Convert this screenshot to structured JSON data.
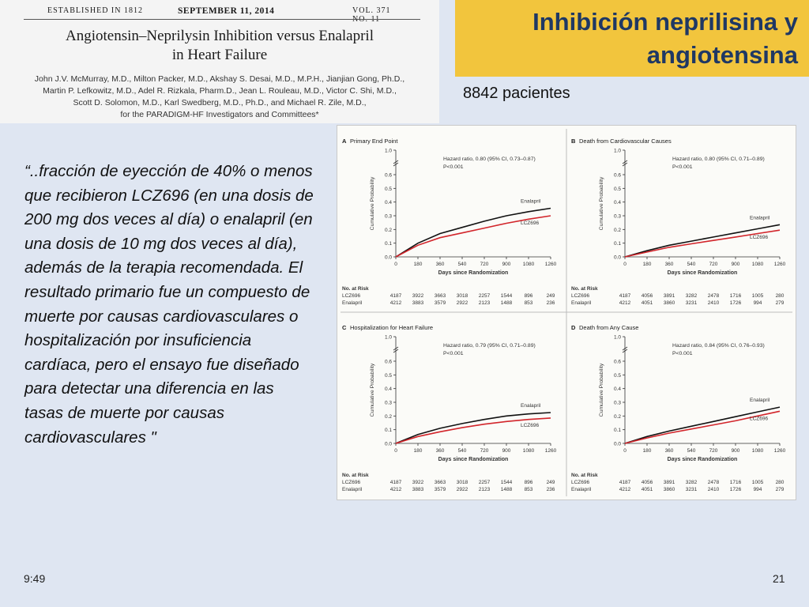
{
  "article": {
    "established": "ESTABLISHED IN 1812",
    "date": "SEPTEMBER 11, 2014",
    "volume": "VOL. 371 NO. 11",
    "title_line1": "Angiotensin–Neprilysin Inhibition versus Enalapril",
    "title_line2": "in Heart Failure",
    "authors_line1": "John J.V. McMurray, M.D., Milton Packer, M.D., Akshay S. Desai, M.D., M.P.H., Jianjian Gong, Ph.D.,",
    "authors_line2": "Martin P. Lefkowitz, M.D., Adel R. Rizkala, Pharm.D., Jean L. Rouleau, M.D., Victor C. Shi, M.D.,",
    "authors_line3": "Scott D. Solomon, M.D., Karl Swedberg, M.D., Ph.D., and Michael R. Zile, M.D.,",
    "authors_line4": "for the PARADIGM-HF Investigators and Committees*"
  },
  "slide": {
    "title_line1": "Inhibición neprilisina y",
    "title_line2": "angiotensina",
    "patients": "8842 pacientes",
    "quote": "“..fracción de eyección de 40% o menos que recibieron LCZ696 (en una dosis de 200 mg dos veces al día) o enalapril (en una dosis de 10 mg dos veces al día), además de la terapia recomendada. El resultado primario fue un compuesto de muerte por causas cardiovasculares o hospitalización por insuficiencia cardíaca, pero el ensayo fue diseñado para detectar una diferencia en las tasas de muerte por causas cardiovasculares \"",
    "time": "9:49",
    "page": "21"
  },
  "chart_data": [
    {
      "panel": "A",
      "type": "line",
      "title": "Primary End Point",
      "annotation": "Hazard ratio, 0.80 (95% CI, 0.73–0.87)",
      "p_value": "P<0.001",
      "xlabel": "Days since Randomization",
      "ylabel": "Cumulative Probability",
      "x": [
        0,
        180,
        360,
        540,
        720,
        900,
        1080,
        1260
      ],
      "xlim": [
        0,
        1260
      ],
      "yticks": [
        "0.0",
        "0.1",
        "0.2",
        "0.3",
        "0.4",
        "0.5",
        "0.6",
        "1.0"
      ],
      "series": [
        {
          "name": "Enalapril",
          "color": "#111111",
          "values": [
            0,
            0.1,
            0.17,
            0.215,
            0.26,
            0.3,
            0.33,
            0.355
          ]
        },
        {
          "name": "LCZ696",
          "color": "#d2252b",
          "values": [
            0,
            0.085,
            0.14,
            0.175,
            0.21,
            0.245,
            0.275,
            0.3
          ]
        }
      ],
      "at_risk": {
        "header": "No. at Risk",
        "rows": [
          {
            "name": "LCZ696",
            "values": [
              "4187",
              "3922",
              "3663",
              "3018",
              "2257",
              "1544",
              "896",
              "249"
            ]
          },
          {
            "name": "Enalapril",
            "values": [
              "4212",
              "3883",
              "3579",
              "2922",
              "2123",
              "1488",
              "853",
              "236"
            ]
          }
        ]
      }
    },
    {
      "panel": "B",
      "type": "line",
      "title": "Death from Cardiovascular Causes",
      "annotation": "Hazard ratio, 0.80 (95% CI, 0.71–0.89)",
      "p_value": "P<0.001",
      "xlabel": "Days since Randomization",
      "ylabel": "Cumulative Probability",
      "x": [
        0,
        180,
        360,
        540,
        720,
        900,
        1080,
        1260
      ],
      "xlim": [
        0,
        1260
      ],
      "yticks": [
        "0.0",
        "0.1",
        "0.2",
        "0.3",
        "0.4",
        "0.5",
        "0.6",
        "1.0"
      ],
      "series": [
        {
          "name": "Enalapril",
          "color": "#111111",
          "values": [
            0,
            0.045,
            0.085,
            0.115,
            0.145,
            0.175,
            0.205,
            0.235
          ]
        },
        {
          "name": "LCZ696",
          "color": "#d2252b",
          "values": [
            0,
            0.035,
            0.07,
            0.095,
            0.12,
            0.145,
            0.17,
            0.195
          ]
        }
      ],
      "at_risk": {
        "header": "No. at Risk",
        "rows": [
          {
            "name": "LCZ696",
            "values": [
              "4187",
              "4056",
              "3891",
              "3282",
              "2478",
              "1716",
              "1005",
              "280"
            ]
          },
          {
            "name": "Enalapril",
            "values": [
              "4212",
              "4051",
              "3860",
              "3231",
              "2410",
              "1726",
              "994",
              "279"
            ]
          }
        ]
      }
    },
    {
      "panel": "C",
      "type": "line",
      "title": "Hospitalization for Heart Failure",
      "annotation": "Hazard ratio, 0.79 (95% CI, 0.71–0.89)",
      "p_value": "P<0.001",
      "xlabel": "Days since Randomization",
      "ylabel": "Cumulative Probability",
      "x": [
        0,
        180,
        360,
        540,
        720,
        900,
        1080,
        1260
      ],
      "xlim": [
        0,
        1260
      ],
      "yticks": [
        "0.0",
        "0.1",
        "0.2",
        "0.3",
        "0.4",
        "0.5",
        "0.6",
        "1.0"
      ],
      "series": [
        {
          "name": "Enalapril",
          "color": "#111111",
          "values": [
            0,
            0.065,
            0.11,
            0.145,
            0.175,
            0.2,
            0.215,
            0.225
          ]
        },
        {
          "name": "LCZ696",
          "color": "#d2252b",
          "values": [
            0,
            0.05,
            0.085,
            0.115,
            0.14,
            0.16,
            0.175,
            0.185
          ]
        }
      ],
      "at_risk": {
        "header": "No. at Risk",
        "rows": [
          {
            "name": "LCZ696",
            "values": [
              "4187",
              "3922",
              "3663",
              "3018",
              "2257",
              "1544",
              "896",
              "249"
            ]
          },
          {
            "name": "Enalapril",
            "values": [
              "4212",
              "3883",
              "3579",
              "2922",
              "2123",
              "1488",
              "853",
              "236"
            ]
          }
        ]
      }
    },
    {
      "panel": "D",
      "type": "line",
      "title": "Death from Any Cause",
      "annotation": "Hazard ratio, 0.84 (95% CI, 0.76–0.93)",
      "p_value": "P<0.001",
      "xlabel": "Days since Randomization",
      "ylabel": "Cumulative Probability",
      "x": [
        0,
        180,
        360,
        540,
        720,
        900,
        1080,
        1260
      ],
      "xlim": [
        0,
        1260
      ],
      "yticks": [
        "0.0",
        "0.1",
        "0.2",
        "0.3",
        "0.4",
        "0.5",
        "0.6",
        "1.0"
      ],
      "series": [
        {
          "name": "Enalapril",
          "color": "#111111",
          "values": [
            0,
            0.05,
            0.09,
            0.125,
            0.16,
            0.195,
            0.23,
            0.265
          ]
        },
        {
          "name": "LCZ696",
          "color": "#d2252b",
          "values": [
            0,
            0.04,
            0.075,
            0.105,
            0.135,
            0.165,
            0.2,
            0.235
          ]
        }
      ],
      "at_risk": {
        "header": "No. at Risk",
        "rows": [
          {
            "name": "LCZ696",
            "values": [
              "4187",
              "4056",
              "3891",
              "3282",
              "2478",
              "1716",
              "1005",
              "280"
            ]
          },
          {
            "name": "Enalapril",
            "values": [
              "4212",
              "4051",
              "3860",
              "3231",
              "2410",
              "1726",
              "994",
              "279"
            ]
          }
        ]
      }
    }
  ]
}
